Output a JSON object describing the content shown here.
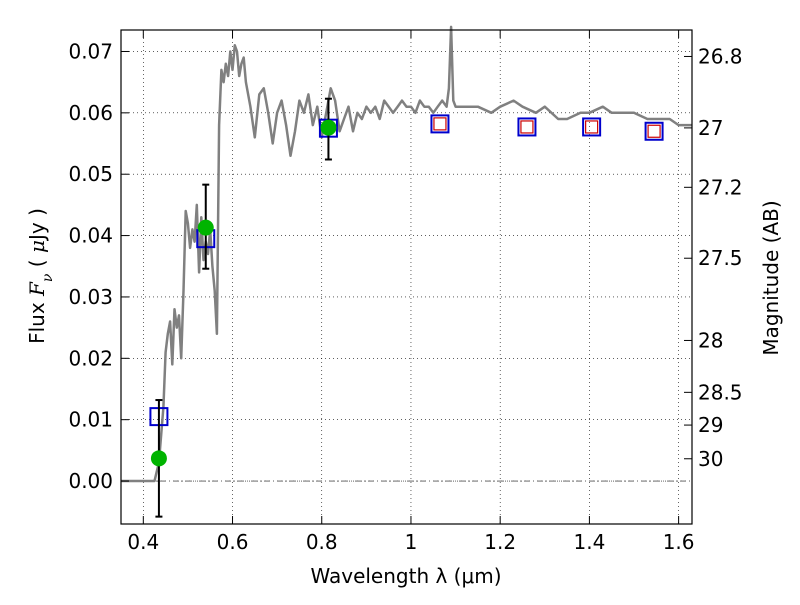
{
  "chart_data": {
    "type": "scatter",
    "xlabel": "Wavelength  λ (μm)",
    "ylabel": "Flux  F_ν  ( μJy )",
    "ylabel_parts": [
      "Flux  ",
      "F",
      "ν",
      "  ( ",
      "μ",
      "Jy )"
    ],
    "y2label": "Magnitude (AB)",
    "xlim": [
      0.35,
      1.63
    ],
    "ylim": [
      -0.007,
      0.0735
    ],
    "grid": true,
    "x_ticks": [
      {
        "value": 0.4,
        "label": "0.4"
      },
      {
        "value": 0.6,
        "label": "0.6"
      },
      {
        "value": 0.8,
        "label": "0.8"
      },
      {
        "value": 1.0,
        "label": "1"
      },
      {
        "value": 1.2,
        "label": "1.2"
      },
      {
        "value": 1.4,
        "label": "1.4"
      },
      {
        "value": 1.6,
        "label": "1.6"
      }
    ],
    "y_ticks": [
      {
        "value": 0.0,
        "label": "0.00"
      },
      {
        "value": 0.01,
        "label": "0.01"
      },
      {
        "value": 0.02,
        "label": "0.02"
      },
      {
        "value": 0.03,
        "label": "0.03"
      },
      {
        "value": 0.04,
        "label": "0.04"
      },
      {
        "value": 0.05,
        "label": "0.05"
      },
      {
        "value": 0.06,
        "label": "0.06"
      },
      {
        "value": 0.07,
        "label": "0.07"
      }
    ],
    "y2_ticks": [
      {
        "mag": 26.8,
        "label": "26.8"
      },
      {
        "mag": 27.0,
        "label": "27"
      },
      {
        "mag": 27.2,
        "label": "27.2"
      },
      {
        "mag": 27.5,
        "label": "27.5"
      },
      {
        "mag": 28.0,
        "label": "28"
      },
      {
        "mag": 28.5,
        "label": "28.5"
      },
      {
        "mag": 29.0,
        "label": "29"
      },
      {
        "mag": 30.0,
        "label": "30"
      }
    ],
    "model_spectrum": {
      "color": "#808080",
      "x": [
        0.35,
        0.425,
        0.435,
        0.445,
        0.45,
        0.455,
        0.46,
        0.465,
        0.47,
        0.475,
        0.48,
        0.485,
        0.49,
        0.495,
        0.5,
        0.505,
        0.51,
        0.515,
        0.52,
        0.525,
        0.53,
        0.535,
        0.54,
        0.545,
        0.55,
        0.555,
        0.56,
        0.565,
        0.57,
        0.575,
        0.58,
        0.585,
        0.59,
        0.595,
        0.6,
        0.605,
        0.61,
        0.615,
        0.62,
        0.625,
        0.63,
        0.64,
        0.65,
        0.66,
        0.67,
        0.68,
        0.69,
        0.7,
        0.71,
        0.72,
        0.73,
        0.74,
        0.75,
        0.76,
        0.77,
        0.78,
        0.79,
        0.8,
        0.81,
        0.82,
        0.83,
        0.84,
        0.85,
        0.86,
        0.87,
        0.88,
        0.89,
        0.9,
        0.91,
        0.92,
        0.93,
        0.94,
        0.95,
        0.96,
        0.97,
        0.98,
        0.99,
        1.0,
        1.01,
        1.02,
        1.03,
        1.04,
        1.05,
        1.06,
        1.07,
        1.08,
        1.085,
        1.09,
        1.095,
        1.1,
        1.12,
        1.15,
        1.18,
        1.2,
        1.23,
        1.25,
        1.28,
        1.3,
        1.33,
        1.35,
        1.38,
        1.4,
        1.43,
        1.45,
        1.48,
        1.5,
        1.53,
        1.55,
        1.58,
        1.6,
        1.63
      ],
      "y": [
        0.0,
        0.0,
        0.003,
        0.012,
        0.021,
        0.024,
        0.026,
        0.019,
        0.028,
        0.025,
        0.027,
        0.02,
        0.031,
        0.044,
        0.042,
        0.038,
        0.041,
        0.039,
        0.045,
        0.034,
        0.043,
        0.036,
        0.039,
        0.037,
        0.041,
        0.035,
        0.031,
        0.024,
        0.058,
        0.067,
        0.065,
        0.068,
        0.066,
        0.07,
        0.067,
        0.071,
        0.07,
        0.066,
        0.068,
        0.069,
        0.065,
        0.061,
        0.056,
        0.063,
        0.064,
        0.06,
        0.055,
        0.06,
        0.062,
        0.058,
        0.053,
        0.057,
        0.062,
        0.06,
        0.063,
        0.058,
        0.061,
        0.056,
        0.06,
        0.064,
        0.062,
        0.057,
        0.059,
        0.061,
        0.057,
        0.06,
        0.059,
        0.061,
        0.06,
        0.061,
        0.059,
        0.062,
        0.061,
        0.06,
        0.061,
        0.062,
        0.061,
        0.061,
        0.06,
        0.062,
        0.061,
        0.061,
        0.06,
        0.061,
        0.062,
        0.061,
        0.064,
        0.074,
        0.062,
        0.061,
        0.061,
        0.061,
        0.06,
        0.061,
        0.062,
        0.061,
        0.06,
        0.061,
        0.059,
        0.059,
        0.06,
        0.06,
        0.061,
        0.06,
        0.06,
        0.06,
        0.059,
        0.059,
        0.059,
        0.058,
        0.058
      ]
    },
    "series": [
      {
        "marker": "open-square",
        "color": "#0000cc",
        "x": [
          0.435,
          0.54,
          0.815
        ],
        "y": [
          0.0105,
          0.0395,
          0.0575
        ]
      },
      {
        "marker": "filled-circle",
        "color": "#00b400",
        "x": [
          0.435,
          0.54,
          0.815
        ],
        "y": [
          0.0037,
          0.0413,
          0.0576
        ],
        "err_low": [
          0.0095,
          0.0067,
          0.0052
        ],
        "err_high": [
          0.0095,
          0.007,
          0.0047
        ]
      },
      {
        "marker": "square-in-square",
        "color": "#0000cc",
        "inner_color": "#cc0000",
        "x": [
          1.065,
          1.26,
          1.405,
          1.545
        ],
        "y": [
          0.0582,
          0.0577,
          0.0577,
          0.057
        ]
      }
    ]
  }
}
